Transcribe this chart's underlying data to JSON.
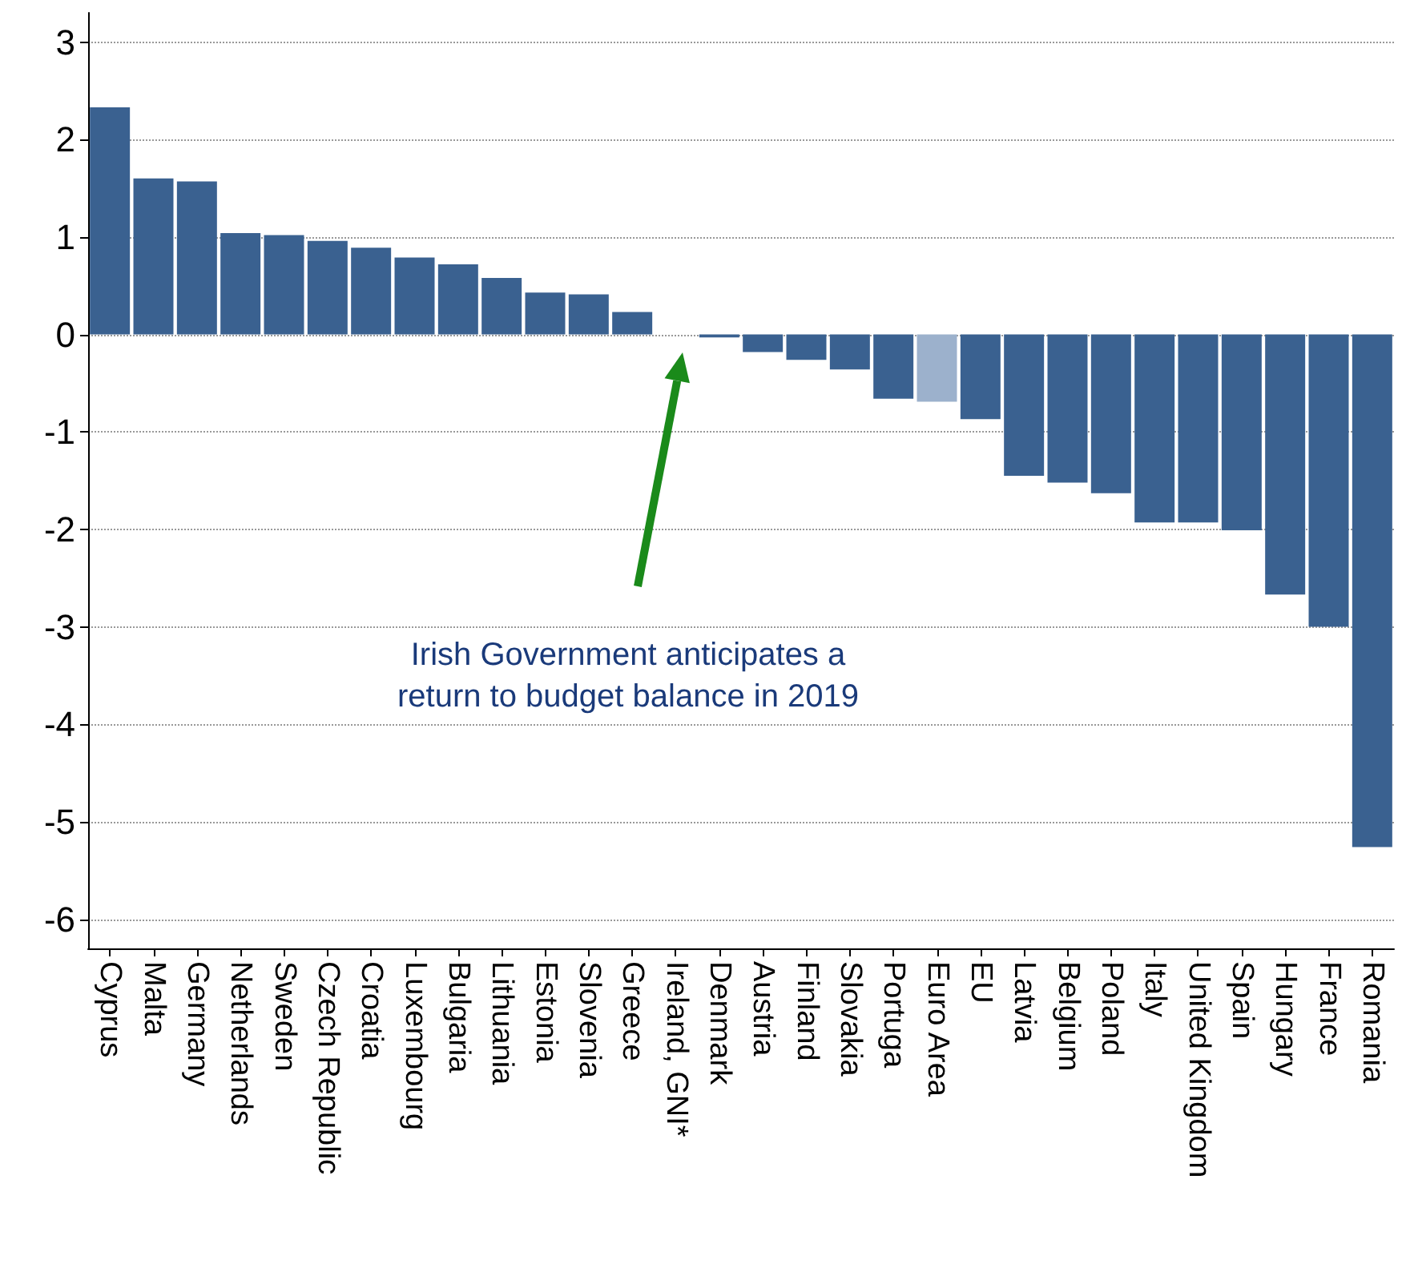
{
  "chart_data": {
    "type": "bar",
    "categories": [
      "Cyprus",
      "Malta",
      "Germany",
      "Netherlands",
      "Sweden",
      "Czech Republic",
      "Croatia",
      "Luxembourg",
      "Bulgaria",
      "Lithuania",
      "Estonia",
      "Slovenia",
      "Greece",
      "Ireland, GNI*",
      "Denmark",
      "Austria",
      "Finland",
      "Slovakia",
      "Portuga",
      "Euro Area",
      "EU",
      "Latvia",
      "Belgium",
      "Poland",
      "Italy",
      "United Kingdom",
      "Spain",
      "Hungary",
      "France",
      "Romania"
    ],
    "values": [
      2.33,
      1.6,
      1.57,
      1.04,
      1.02,
      0.96,
      0.89,
      0.79,
      0.72,
      0.58,
      0.43,
      0.41,
      0.23,
      0,
      -0.03,
      -0.18,
      -0.26,
      -0.36,
      -0.66,
      -0.69,
      -0.87,
      -1.45,
      -1.52,
      -1.63,
      -1.93,
      -1.93,
      -2.01,
      -2.67,
      -3.0,
      -5.26
    ],
    "colors": [
      "#3a6190",
      "#3a6190",
      "#3a6190",
      "#3a6190",
      "#3a6190",
      "#3a6190",
      "#3a6190",
      "#3a6190",
      "#3a6190",
      "#3a6190",
      "#3a6190",
      "#3a6190",
      "#3a6190",
      "#3a6190",
      "#3a6190",
      "#3a6190",
      "#3a6190",
      "#3a6190",
      "#3a6190",
      "#9cb1cc",
      "#3a6190",
      "#3a6190",
      "#3a6190",
      "#3a6190",
      "#3a6190",
      "#3a6190",
      "#3a6190",
      "#3a6190",
      "#3a6190",
      "#3a6190"
    ],
    "ylim": [
      -6.3,
      3.3
    ],
    "yticks": [
      -6,
      -5,
      -4,
      -3,
      -2,
      -1,
      0,
      1,
      2,
      3
    ],
    "grid": "y",
    "annotations": [
      "Irish Government anticipates a\nreturn to budget balance in 2019"
    ]
  }
}
